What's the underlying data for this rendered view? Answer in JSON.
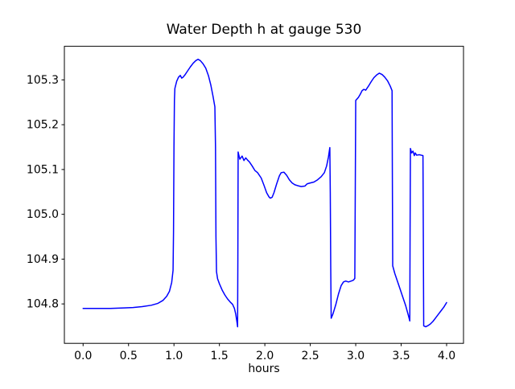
{
  "figure": {
    "background": "#ffffff",
    "frame_color": "#000000"
  },
  "chart_data": {
    "type": "line",
    "title": "Water Depth h at gauge 530",
    "xlabel": "hours",
    "ylabel": "",
    "grid": false,
    "legend": null,
    "xlim": [
      -0.206,
      4.186
    ],
    "ylim": [
      104.712,
      105.375
    ],
    "xticks": {
      "values": [
        0.0,
        0.5,
        1.0,
        1.5,
        2.0,
        2.5,
        3.0,
        3.5,
        4.0
      ],
      "labels": [
        "0.0",
        "0.5",
        "1.0",
        "1.5",
        "2.0",
        "2.5",
        "3.0",
        "3.5",
        "4.0"
      ]
    },
    "yticks": {
      "values": [
        104.8,
        104.9,
        105.0,
        105.1,
        105.2,
        105.3
      ],
      "labels": [
        "104.8",
        "104.9",
        "105.0",
        "105.1",
        "105.2",
        "105.3"
      ]
    },
    "series": [
      {
        "name": "water-depth-h",
        "color": "#0000ff",
        "linewidth": 1.5,
        "points": [
          [
            0.0,
            104.79
          ],
          [
            0.15,
            104.79
          ],
          [
            0.3,
            104.79
          ],
          [
            0.45,
            104.791
          ],
          [
            0.55,
            104.792
          ],
          [
            0.65,
            104.794
          ],
          [
            0.75,
            104.797
          ],
          [
            0.82,
            104.801
          ],
          [
            0.88,
            104.808
          ],
          [
            0.92,
            104.817
          ],
          [
            0.95,
            104.828
          ],
          [
            0.975,
            104.848
          ],
          [
            0.99,
            104.875
          ],
          [
            0.995,
            104.96
          ],
          [
            1.0,
            105.15
          ],
          [
            1.005,
            105.255
          ],
          [
            1.01,
            105.281
          ],
          [
            1.03,
            105.297
          ],
          [
            1.05,
            105.306
          ],
          [
            1.07,
            105.31
          ],
          [
            1.085,
            105.304
          ],
          [
            1.1,
            105.306
          ],
          [
            1.12,
            105.311
          ],
          [
            1.15,
            105.32
          ],
          [
            1.18,
            105.329
          ],
          [
            1.21,
            105.337
          ],
          [
            1.24,
            105.343
          ],
          [
            1.265,
            105.346
          ],
          [
            1.29,
            105.343
          ],
          [
            1.32,
            105.336
          ],
          [
            1.35,
            105.326
          ],
          [
            1.38,
            105.309
          ],
          [
            1.405,
            105.289
          ],
          [
            1.43,
            105.263
          ],
          [
            1.45,
            105.24
          ],
          [
            1.457,
            105.15
          ],
          [
            1.462,
            104.95
          ],
          [
            1.468,
            104.872
          ],
          [
            1.48,
            104.856
          ],
          [
            1.5,
            104.845
          ],
          [
            1.53,
            104.831
          ],
          [
            1.56,
            104.82
          ],
          [
            1.59,
            104.811
          ],
          [
            1.62,
            104.804
          ],
          [
            1.645,
            104.799
          ],
          [
            1.665,
            104.79
          ],
          [
            1.68,
            104.777
          ],
          [
            1.695,
            104.757
          ],
          [
            1.7,
            104.749
          ],
          [
            1.703,
            104.9
          ],
          [
            1.706,
            105.139
          ],
          [
            1.715,
            105.131
          ],
          [
            1.725,
            105.123
          ],
          [
            1.75,
            105.13
          ],
          [
            1.77,
            105.12
          ],
          [
            1.79,
            105.126
          ],
          [
            1.81,
            105.121
          ],
          [
            1.83,
            105.117
          ],
          [
            1.86,
            105.108
          ],
          [
            1.89,
            105.098
          ],
          [
            1.92,
            105.093
          ],
          [
            1.96,
            105.081
          ],
          [
            1.99,
            105.065
          ],
          [
            2.02,
            105.048
          ],
          [
            2.045,
            105.039
          ],
          [
            2.06,
            105.036
          ],
          [
            2.08,
            105.038
          ],
          [
            2.1,
            105.048
          ],
          [
            2.13,
            105.068
          ],
          [
            2.16,
            105.086
          ],
          [
            2.18,
            105.093
          ],
          [
            2.21,
            105.094
          ],
          [
            2.24,
            105.087
          ],
          [
            2.27,
            105.077
          ],
          [
            2.3,
            105.07
          ],
          [
            2.33,
            105.066
          ],
          [
            2.36,
            105.064
          ],
          [
            2.4,
            105.062
          ],
          [
            2.44,
            105.063
          ],
          [
            2.465,
            105.068
          ],
          [
            2.5,
            105.07
          ],
          [
            2.54,
            105.072
          ],
          [
            2.58,
            105.077
          ],
          [
            2.62,
            105.084
          ],
          [
            2.655,
            105.093
          ],
          [
            2.68,
            105.108
          ],
          [
            2.7,
            105.128
          ],
          [
            2.715,
            105.149
          ],
          [
            2.72,
            105.05
          ],
          [
            2.725,
            104.88
          ],
          [
            2.73,
            104.768
          ],
          [
            2.75,
            104.778
          ],
          [
            2.78,
            104.798
          ],
          [
            2.81,
            104.822
          ],
          [
            2.84,
            104.841
          ],
          [
            2.865,
            104.849
          ],
          [
            2.89,
            104.851
          ],
          [
            2.92,
            104.849
          ],
          [
            2.95,
            104.851
          ],
          [
            2.975,
            104.853
          ],
          [
            2.99,
            104.857
          ],
          [
            2.995,
            105.05
          ],
          [
            3.0,
            105.254
          ],
          [
            3.03,
            105.261
          ],
          [
            3.05,
            105.268
          ],
          [
            3.07,
            105.276
          ],
          [
            3.09,
            105.279
          ],
          [
            3.11,
            105.277
          ],
          [
            3.14,
            105.286
          ],
          [
            3.17,
            105.296
          ],
          [
            3.2,
            105.305
          ],
          [
            3.23,
            105.311
          ],
          [
            3.26,
            105.315
          ],
          [
            3.29,
            105.312
          ],
          [
            3.32,
            105.306
          ],
          [
            3.35,
            105.298
          ],
          [
            3.38,
            105.286
          ],
          [
            3.4,
            105.276
          ],
          [
            3.403,
            105.1
          ],
          [
            3.407,
            104.885
          ],
          [
            3.43,
            104.868
          ],
          [
            3.46,
            104.85
          ],
          [
            3.49,
            104.832
          ],
          [
            3.52,
            104.814
          ],
          [
            3.55,
            104.796
          ],
          [
            3.58,
            104.774
          ],
          [
            3.595,
            104.762
          ],
          [
            3.598,
            104.95
          ],
          [
            3.602,
            105.147
          ],
          [
            3.615,
            105.137
          ],
          [
            3.63,
            105.141
          ],
          [
            3.645,
            105.131
          ],
          [
            3.655,
            105.137
          ],
          [
            3.67,
            105.132
          ],
          [
            3.7,
            105.133
          ],
          [
            3.72,
            105.132
          ],
          [
            3.74,
            105.131
          ],
          [
            3.744,
            104.95
          ],
          [
            3.748,
            104.751
          ],
          [
            3.77,
            104.749
          ],
          [
            3.79,
            104.751
          ],
          [
            3.82,
            104.755
          ],
          [
            3.85,
            104.761
          ],
          [
            3.88,
            104.769
          ],
          [
            3.91,
            104.777
          ],
          [
            3.94,
            104.785
          ],
          [
            3.97,
            104.793
          ],
          [
            4.0,
            104.803
          ]
        ]
      }
    ]
  }
}
